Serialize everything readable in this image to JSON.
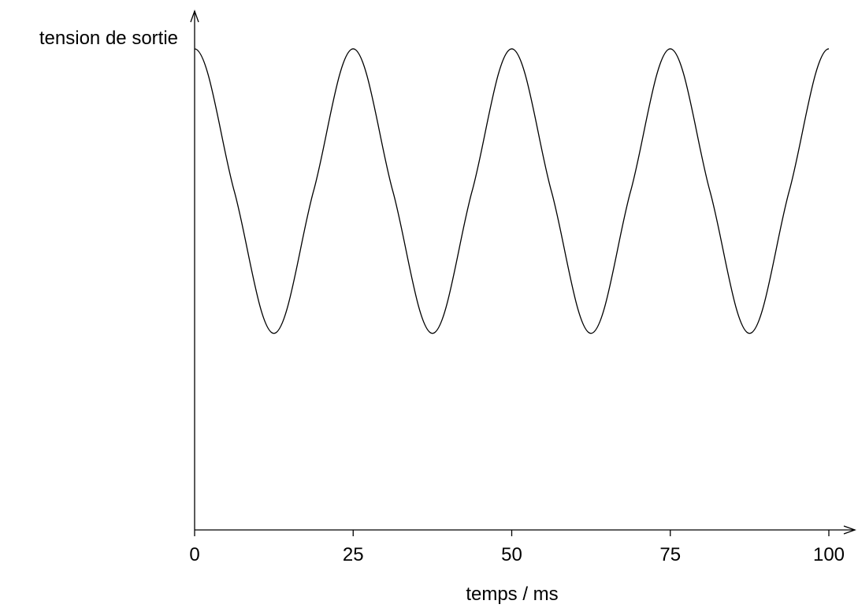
{
  "chart_data": {
    "type": "line",
    "title": "",
    "xlabel": "temps / ms",
    "ylabel": "tension de sortie",
    "x_ticks": [
      "0",
      "25",
      "50",
      "75",
      "100"
    ],
    "x_tick_values": [
      0,
      25,
      50,
      75,
      100
    ],
    "xlim": [
      0,
      100
    ],
    "ylim": [
      0,
      1
    ],
    "y_ticks": [],
    "grid": false,
    "legend": "none",
    "series": [
      {
        "x": [
          0,
          6.25,
          12.5,
          18.75,
          25,
          31.25,
          37.5,
          43.75,
          50,
          56.25,
          62.5,
          68.75,
          75,
          81.25,
          87.5,
          93.75,
          100
        ],
        "values": [
          0.93,
          0.655,
          0.38,
          0.655,
          0.93,
          0.655,
          0.38,
          0.655,
          0.93,
          0.655,
          0.38,
          0.655,
          0.93,
          0.655,
          0.38,
          0.655,
          0.93
        ],
        "color": "#000000"
      }
    ]
  }
}
